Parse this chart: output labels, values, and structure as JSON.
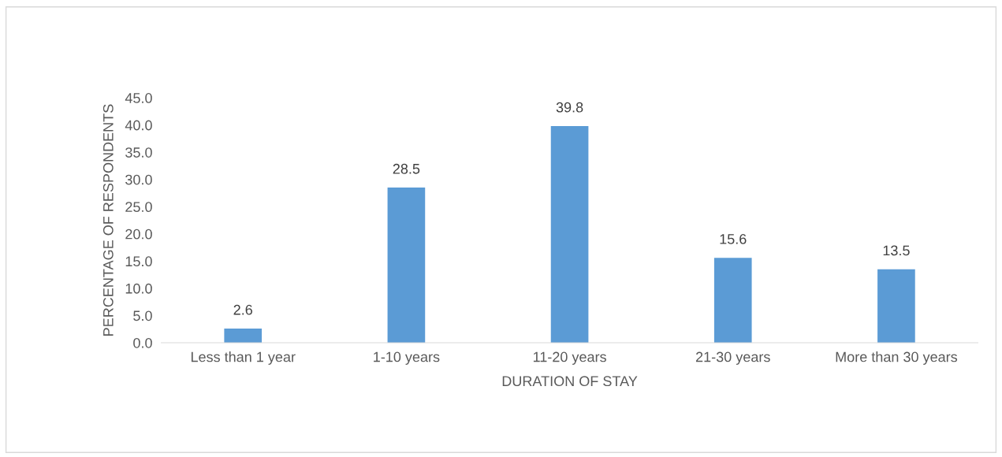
{
  "chart_data": {
    "type": "bar",
    "xlabel": "DURATION OF STAY",
    "ylabel": "PERCENTAGE OF RESPONDENTS",
    "categories": [
      "Less than 1 year",
      "1-10 years",
      "11-20 years",
      "21-30 years",
      "More than 30 years"
    ],
    "values": [
      2.6,
      28.5,
      39.8,
      15.6,
      13.5
    ],
    "color": "#5b9bd5",
    "data_labels": true,
    "grid": false,
    "legend": false,
    "ylim": [
      0,
      45
    ],
    "yticks": [
      {
        "value": 0,
        "label": "0.0"
      },
      {
        "value": 5,
        "label": "5.0"
      },
      {
        "value": 10,
        "label": "10.0"
      },
      {
        "value": 15,
        "label": "15.0"
      },
      {
        "value": 20,
        "label": "20.0"
      },
      {
        "value": 25,
        "label": "25.0"
      },
      {
        "value": 30,
        "label": "30.0"
      },
      {
        "value": 35,
        "label": "35.0"
      },
      {
        "value": 40,
        "label": "40.0"
      },
      {
        "value": 45,
        "label": "45.0"
      }
    ]
  }
}
